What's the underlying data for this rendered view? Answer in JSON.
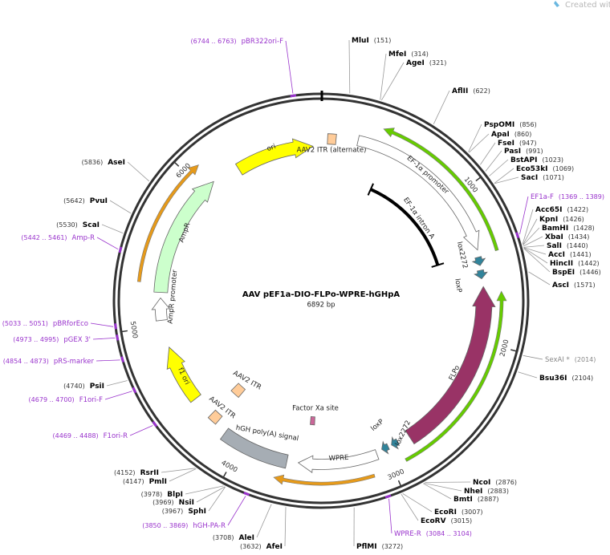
{
  "header": {
    "credit": "Created with SnapGene®"
  },
  "plasmid": {
    "name": "AAV pEF1a-DIO-FLPo-WPRE-hGHpA",
    "size": "6892 bp",
    "ticks": [
      1000,
      2000,
      3000,
      4000,
      5000,
      6000
    ]
  },
  "sites": [
    {
      "name": "MluI",
      "position": "(151)"
    },
    {
      "name": "MfeI",
      "position": "(314)"
    },
    {
      "name": "AgeI",
      "position": "(321)"
    },
    {
      "name": "AflII",
      "position": "(622)"
    },
    {
      "name": "PspOMI",
      "position": "(856)"
    },
    {
      "name": "ApaI",
      "position": "(860)"
    },
    {
      "name": "FseI",
      "position": "(947)"
    },
    {
      "name": "PasI",
      "position": "(991)"
    },
    {
      "name": "BstAPI",
      "position": "(1023)"
    },
    {
      "name": "Eco53kI",
      "position": "(1069)"
    },
    {
      "name": "SacI",
      "position": "(1071)"
    },
    {
      "name": "EF1a-F",
      "position": "(1369 .. 1389)",
      "color": "#9933cc"
    },
    {
      "name": "Acc65I",
      "position": "(1422)"
    },
    {
      "name": "KpnI",
      "position": "(1426)"
    },
    {
      "name": "BamHI",
      "position": "(1428)"
    },
    {
      "name": "XbaI",
      "position": "(1434)"
    },
    {
      "name": "SalI",
      "position": "(1440)"
    },
    {
      "name": "AccI",
      "position": "(1441)"
    },
    {
      "name": "HincII",
      "position": "(1442)"
    },
    {
      "name": "BspEI",
      "position": "(1446)"
    },
    {
      "name": "AscI",
      "position": "(1571)"
    },
    {
      "name": "SexAI *",
      "position": "(2014)",
      "color": "#888888"
    },
    {
      "name": "Bsu36I",
      "position": "(2104)"
    },
    {
      "name": "NcoI",
      "position": "(2876)"
    },
    {
      "name": "NheI",
      "position": "(2883)"
    },
    {
      "name": "BmtI",
      "position": "(2887)"
    },
    {
      "name": "EcoRI",
      "position": "(3007)"
    },
    {
      "name": "EcoRV",
      "position": "(3015)"
    },
    {
      "name": "WPRE-R",
      "position": "(3084 .. 3104)",
      "color": "#9933cc"
    },
    {
      "name": "PflMI",
      "position": "(3272)"
    },
    {
      "name": "AfeI",
      "position": "(3632)"
    },
    {
      "name": "AleI",
      "position": "(3708)"
    },
    {
      "name": "hGH-PA-R",
      "position": "(3850 .. 3869)",
      "color": "#9933cc"
    },
    {
      "name": "SphI",
      "position": "(3967)"
    },
    {
      "name": "NsiI",
      "position": "(3969)"
    },
    {
      "name": "BlpI",
      "position": "(3978)"
    },
    {
      "name": "PmlI",
      "position": "(4147)"
    },
    {
      "name": "RsrII",
      "position": "(4152)"
    },
    {
      "name": "F1ori-R",
      "position": "(4469 .. 4488)",
      "color": "#9933cc"
    },
    {
      "name": "F1ori-F",
      "position": "(4679 .. 4700)",
      "color": "#9933cc"
    },
    {
      "name": "PsiI",
      "position": "(4740)"
    },
    {
      "name": "pRS-marker",
      "position": "(4854 .. 4873)",
      "color": "#9933cc"
    },
    {
      "name": "pGEX 3'",
      "position": "(4973 .. 4995)",
      "color": "#9933cc"
    },
    {
      "name": "pBRforEco",
      "position": "(5033 .. 5051)",
      "color": "#9933cc"
    },
    {
      "name": "Amp-R",
      "position": "(5442 .. 5461)",
      "color": "#9933cc"
    },
    {
      "name": "ScaI",
      "position": "(5530)"
    },
    {
      "name": "PvuI",
      "position": "(5642)"
    },
    {
      "name": "AseI",
      "position": "(5836)"
    },
    {
      "name": "pBR322ori-F",
      "position": "(6744 .. 6763)",
      "color": "#9933cc"
    }
  ],
  "features": [
    {
      "label": "ori",
      "color": "#ffff00"
    },
    {
      "label": "AAV2 ITR (alternate)",
      "color": "#ffcc99"
    },
    {
      "label": "EF-1α promoter",
      "color": "#ffffff"
    },
    {
      "label": "EF-1α intron A",
      "color": "#000000"
    },
    {
      "label": "lox2272",
      "color": "#31849b"
    },
    {
      "label": "loxP",
      "color": "#31849b"
    },
    {
      "label": "FLPo",
      "color": "#993366"
    },
    {
      "label": "lox2272",
      "color": "#31849b"
    },
    {
      "label": "loxP",
      "color": "#31849b"
    },
    {
      "label": "WPRE",
      "color": "#ffffff"
    },
    {
      "label": "hGH poly(A) signal",
      "color": "#a6adb4"
    },
    {
      "label": "AAV2 ITR",
      "color": "#ffcc99"
    },
    {
      "label": "AAV2 ITR",
      "color": "#ffcc99"
    },
    {
      "label": "Factor Xa site",
      "color": "#cc6699"
    },
    {
      "label": "f1 ori",
      "color": "#ffff00"
    },
    {
      "label": "AmpR",
      "color": "#ccffcc"
    },
    {
      "label": "AmpR promoter",
      "color": "#ffffff"
    }
  ]
}
